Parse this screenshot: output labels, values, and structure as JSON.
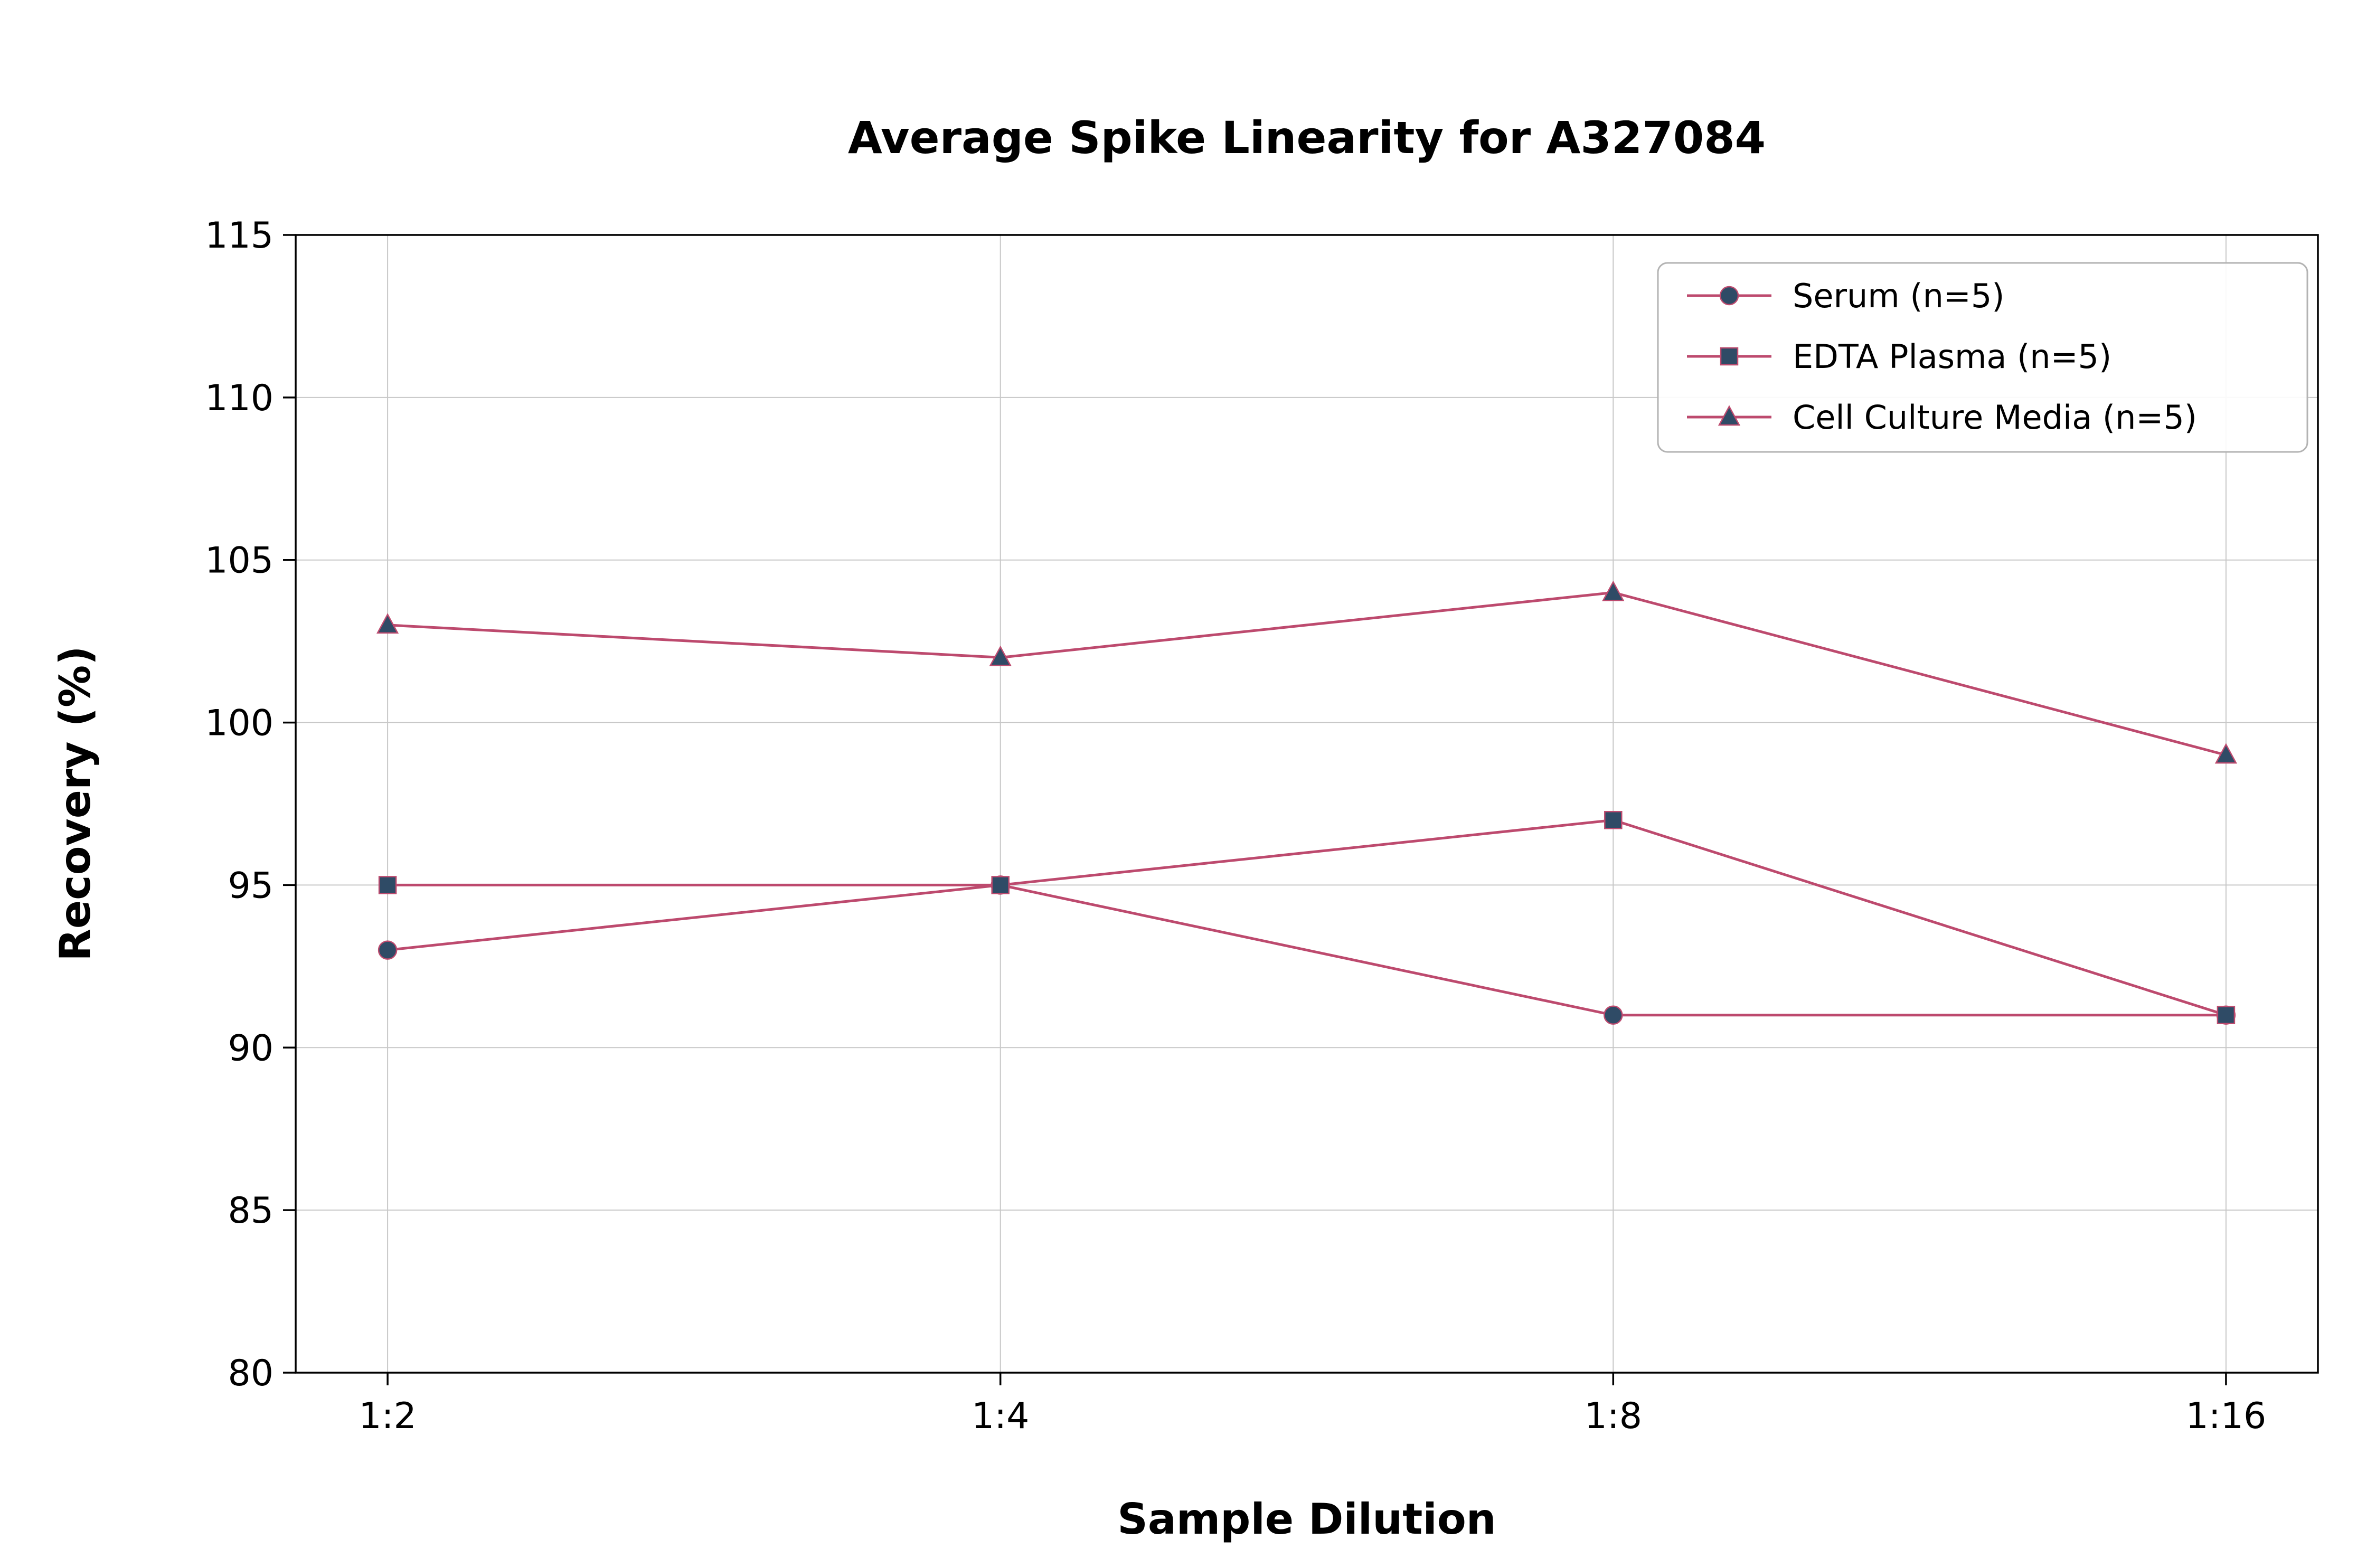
{
  "colors": {
    "line": "#bd4a6e",
    "marker_fill": "#2f4b66",
    "grid": "#c8c8c8",
    "spine": "#000000",
    "legend_border": "#b3b3b3",
    "background": "#ffffff"
  },
  "chart_data": {
    "type": "line",
    "title": "Average Spike Linearity for A327084",
    "xlabel": "Sample Dilution",
    "ylabel": "Recovery (%)",
    "categories": [
      "1:2",
      "1:4",
      "1:8",
      "1:16"
    ],
    "series": [
      {
        "name": "Serum (n=5)",
        "marker": "circle",
        "values": [
          93,
          95,
          91,
          91
        ]
      },
      {
        "name": "EDTA Plasma (n=5)",
        "marker": "square",
        "values": [
          95,
          95,
          97,
          91
        ]
      },
      {
        "name": "Cell Culture Media (n=5)",
        "marker": "triangle",
        "values": [
          103,
          102,
          104,
          99
        ]
      }
    ],
    "ylim": [
      80,
      115
    ],
    "yticks": [
      80,
      85,
      90,
      95,
      100,
      105,
      110,
      115
    ],
    "grid": true,
    "legend_position": "upper right"
  }
}
